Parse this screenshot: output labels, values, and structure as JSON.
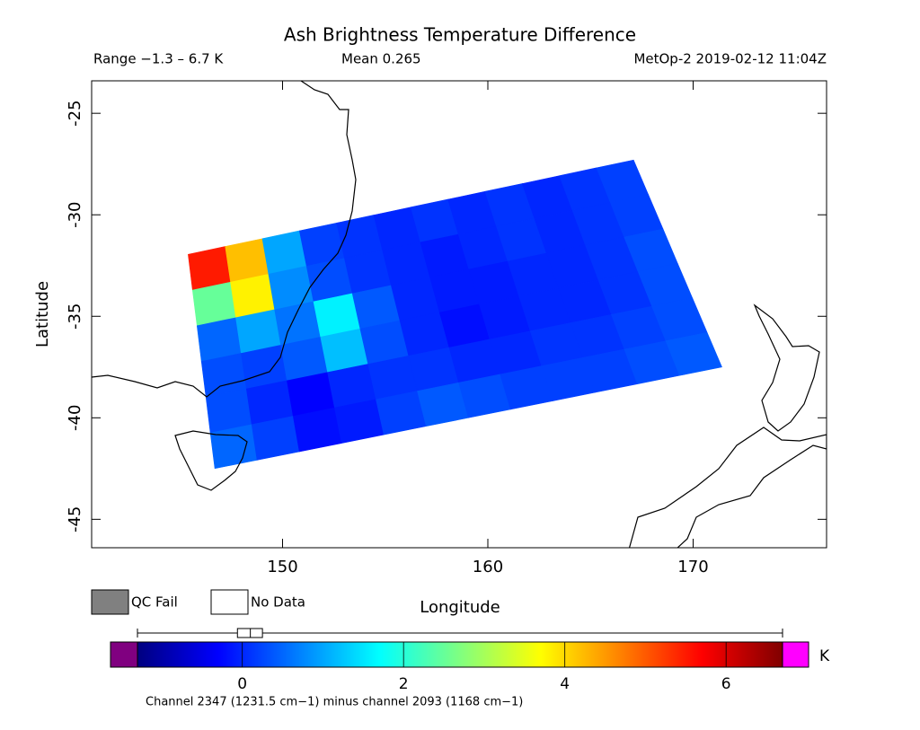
{
  "chart_data": {
    "type": "swath-map",
    "title": "Ash Brightness Temperature Difference",
    "subtitle_left": "Range −1.3 – 6.7 K",
    "subtitle_center": "Mean 0.265",
    "subtitle_right": "MetOp-2 2019-02-12 11:04Z",
    "x_label": "Longitude",
    "y_label": "Latitude",
    "xlim": [
      140.7,
      176.5
    ],
    "ylim": [
      -46.4,
      -23.4
    ],
    "xticks": [
      150,
      160,
      170
    ],
    "yticks": [
      -45,
      -40,
      -35,
      -30,
      -25
    ],
    "swath_corners": [
      [
        145.4,
        -31.95
      ],
      [
        167.1,
        -27.3
      ],
      [
        171.4,
        -37.5
      ],
      [
        146.7,
        -42.5
      ]
    ],
    "values": [
      [
        5.5,
        4.2,
        1.0,
        0.2,
        0.1,
        0.0,
        0.1,
        0.0,
        0.1,
        0.0,
        0.1,
        0.2
      ],
      [
        2.5,
        3.8,
        0.8,
        0.3,
        0.1,
        0.0,
        -0.1,
        0.0,
        0.1,
        0.0,
        0.1,
        0.2
      ],
      [
        0.5,
        1.0,
        0.6,
        1.6,
        0.4,
        0.0,
        -0.1,
        -0.1,
        0.0,
        0.0,
        0.1,
        0.3
      ],
      [
        0.3,
        0.2,
        0.4,
        1.2,
        0.3,
        0.0,
        -0.2,
        -0.1,
        0.0,
        0.0,
        0.1,
        0.3
      ],
      [
        0.3,
        0.0,
        -0.3,
        0.0,
        0.1,
        0.1,
        0.0,
        0.0,
        0.1,
        0.1,
        0.2,
        0.3
      ],
      [
        0.5,
        0.2,
        -0.2,
        -0.1,
        0.2,
        0.4,
        0.3,
        0.2,
        0.2,
        0.2,
        0.3,
        0.4
      ]
    ],
    "legend": [
      {
        "label": "QC Fail",
        "color": "#808080"
      },
      {
        "label": "No Data",
        "color": "#ffffff"
      }
    ],
    "colorbar": {
      "lim": [
        -1.3,
        6.7
      ],
      "ticks": [
        0,
        2,
        4,
        6
      ],
      "unit": "K",
      "under_color": "#800080",
      "over_color": "#ff00ff",
      "caption": "Channel 2347 (1231.5 cm−1) minus channel 2093 (1168 cm−1)",
      "box": {
        "min": -1.3,
        "q1": -0.06,
        "median": 0.1,
        "q3": 0.25,
        "max": 6.7
      }
    }
  }
}
